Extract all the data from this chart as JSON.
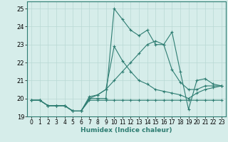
{
  "xlabel": "Humidex (Indice chaleur)",
  "xlim": [
    -0.5,
    23.5
  ],
  "ylim": [
    19.0,
    25.4
  ],
  "yticks": [
    19,
    20,
    21,
    22,
    23,
    24,
    25
  ],
  "xticks": [
    0,
    1,
    2,
    3,
    4,
    5,
    6,
    7,
    8,
    9,
    10,
    11,
    12,
    13,
    14,
    15,
    16,
    17,
    18,
    19,
    20,
    21,
    22,
    23
  ],
  "bg_color": "#d6edea",
  "grid_color": "#b8d8d4",
  "line_color": "#2e7d72",
  "curves": [
    {
      "x": [
        0,
        1,
        2,
        3,
        4,
        5,
        6,
        7,
        8,
        9,
        10,
        11,
        12,
        13,
        14,
        15,
        16,
        17,
        18,
        19,
        20,
        21,
        22,
        23
      ],
      "y": [
        19.9,
        19.9,
        19.6,
        19.6,
        19.6,
        19.3,
        19.3,
        20.0,
        20.0,
        20.0,
        25.0,
        24.4,
        23.8,
        23.5,
        23.8,
        23.0,
        23.0,
        23.7,
        21.5,
        19.4,
        21.0,
        21.1,
        20.8,
        20.7
      ]
    },
    {
      "x": [
        0,
        1,
        2,
        3,
        4,
        5,
        6,
        7,
        8,
        9,
        10,
        11,
        12,
        13,
        14,
        15,
        16,
        17,
        18,
        19,
        20,
        21,
        22,
        23
      ],
      "y": [
        19.9,
        19.9,
        19.6,
        19.6,
        19.6,
        19.3,
        19.3,
        20.1,
        20.2,
        20.5,
        22.9,
        22.1,
        21.5,
        21.0,
        20.8,
        20.5,
        20.4,
        20.3,
        20.2,
        20.0,
        20.3,
        20.5,
        20.6,
        20.7
      ]
    },
    {
      "x": [
        0,
        1,
        2,
        3,
        4,
        5,
        6,
        7,
        8,
        9,
        10,
        11,
        12,
        13,
        14,
        15,
        16,
        17,
        18,
        19,
        20,
        21,
        22,
        23
      ],
      "y": [
        19.9,
        19.9,
        19.6,
        19.6,
        19.6,
        19.3,
        19.3,
        19.9,
        19.9,
        19.9,
        19.9,
        19.9,
        19.9,
        19.9,
        19.9,
        19.9,
        19.9,
        19.9,
        19.9,
        19.9,
        19.9,
        19.9,
        19.9,
        19.9
      ]
    },
    {
      "x": [
        0,
        1,
        2,
        3,
        4,
        5,
        6,
        7,
        8,
        9,
        10,
        11,
        12,
        13,
        14,
        15,
        16,
        17,
        18,
        19,
        20,
        21,
        22,
        23
      ],
      "y": [
        19.9,
        19.9,
        19.6,
        19.6,
        19.6,
        19.3,
        19.3,
        20.0,
        20.2,
        20.5,
        21.0,
        21.5,
        22.0,
        22.5,
        23.0,
        23.2,
        23.0,
        21.6,
        20.9,
        20.5,
        20.5,
        20.7,
        20.7,
        20.7
      ]
    }
  ]
}
